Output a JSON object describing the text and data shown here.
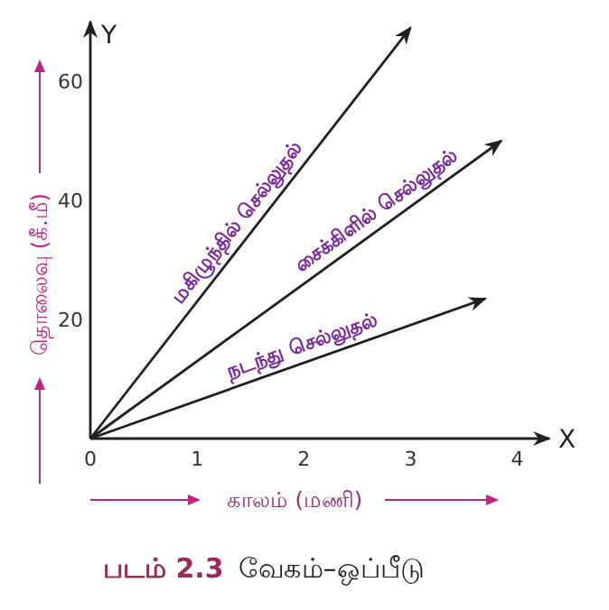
{
  "chart_data": {
    "type": "line",
    "title": "படம் 2.3",
    "subtitle": "வேகம்–ஒப்பீடு",
    "xlabel": "காலம் (மணி)",
    "ylabel": "தொலைவு (கீ.மீ)",
    "annotations": [
      "X",
      "Y"
    ],
    "series": [
      {
        "name": "மகிழுந்தில் செல்லுதல்",
        "color": "#231f20",
        "x": [
          0,
          3.0
        ],
        "values": [
          0,
          69
        ]
      },
      {
        "name": "சைக்கிளில் செல்லுதல்",
        "color": "#231f20",
        "x": [
          0,
          3.85
        ],
        "values": [
          0,
          50
        ]
      },
      {
        "name": "நடந்து செல்லுதல்",
        "color": "#231f20",
        "x": [
          0,
          3.7
        ],
        "values": [
          0,
          23.5
        ]
      }
    ],
    "xlim": [
      0,
      4.3
    ],
    "ylim": [
      0,
      70
    ],
    "xticks": [
      0,
      1,
      2,
      3,
      4
    ],
    "yticks": [
      20,
      40,
      60
    ],
    "grid": false,
    "legend": false,
    "marker": "none",
    "line_style": "solid"
  }
}
